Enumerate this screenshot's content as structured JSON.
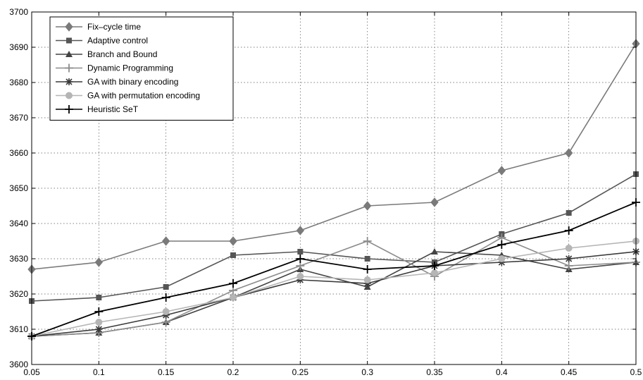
{
  "chart_data": {
    "type": "line",
    "title": "",
    "xlabel": "",
    "ylabel": "",
    "x": [
      0.05,
      0.1,
      0.15,
      0.2,
      0.25,
      0.3,
      0.35,
      0.4,
      0.45,
      0.5
    ],
    "x_tick_labels": [
      "0.05",
      "0.1",
      "0.15",
      "0.2",
      "0.25",
      "0.3",
      "0.35",
      "0.4",
      "0.45",
      "0.5"
    ],
    "xlim": [
      0.05,
      0.5
    ],
    "ylim": [
      3600,
      3700
    ],
    "y_ticks": [
      3600,
      3610,
      3620,
      3630,
      3640,
      3650,
      3660,
      3670,
      3680,
      3690,
      3700
    ],
    "grid": true,
    "legend_position": "top-left",
    "series": [
      {
        "name": "Fix–cycle time",
        "marker": "diamond",
        "color": "#7a7a7a",
        "values": [
          3627,
          3629,
          3635,
          3635,
          3638,
          3645,
          3646,
          3655,
          3660,
          3691
        ]
      },
      {
        "name": "Adaptive control",
        "marker": "square",
        "color": "#555555",
        "values": [
          3618,
          3619,
          3622,
          3631,
          3632,
          3630,
          3629,
          3637,
          3643,
          3654
        ]
      },
      {
        "name": "Branch and Bound",
        "marker": "triangle",
        "color": "#444444",
        "values": [
          3608,
          3609,
          3612,
          3619,
          3627,
          3622,
          3632,
          3631,
          3627,
          3629
        ]
      },
      {
        "name": "Dynamic Programming",
        "marker": "plus",
        "color": "#8c8c8c",
        "values": [
          3608,
          3609,
          3612,
          3621,
          3628,
          3635,
          3625,
          3636,
          3628,
          3629
        ]
      },
      {
        "name": "GA with binary encoding",
        "marker": "asterisk",
        "color": "#3a3a3a",
        "values": [
          3608,
          3610,
          3614,
          3619,
          3624,
          3623,
          3628,
          3629,
          3630,
          3632
        ]
      },
      {
        "name": "GA with permutation encoding",
        "marker": "circle",
        "color": "#b5b5b5",
        "values": [
          3608,
          3612,
          3615,
          3619,
          3625,
          3624,
          3626,
          3630,
          3633,
          3635
        ]
      },
      {
        "name": "Heuristic SeT",
        "marker": "plus",
        "color": "#000000",
        "values": [
          3608,
          3615,
          3619,
          3623,
          3630,
          3627,
          3628,
          3634,
          3638,
          3646
        ]
      }
    ]
  }
}
